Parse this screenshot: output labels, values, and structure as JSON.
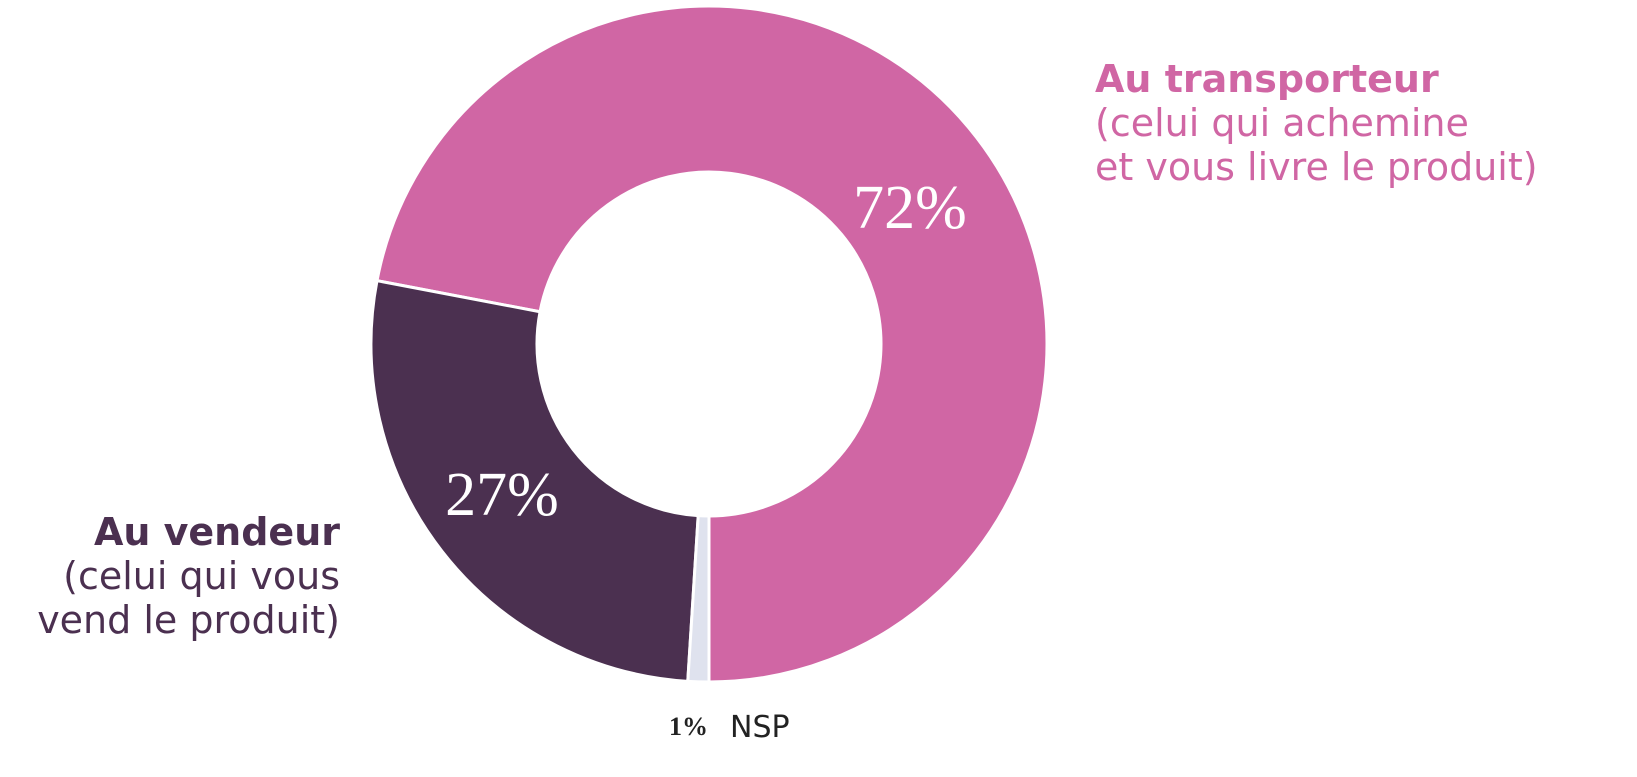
{
  "chart_data": {
    "type": "donut",
    "categories": [
      "Au transporteur",
      "Au vendeur",
      "NSP"
    ],
    "descriptions": [
      [
        "(celui qui achemine",
        "et vous livre le produit)"
      ],
      [
        "(celui qui vous",
        "vend le produit)"
      ],
      null
    ],
    "values": [
      72,
      27,
      1
    ],
    "value_labels": [
      "72%",
      "27%",
      "1%"
    ],
    "colors": [
      "#d066a4",
      "#4b3050",
      "#dfe2ee"
    ]
  }
}
